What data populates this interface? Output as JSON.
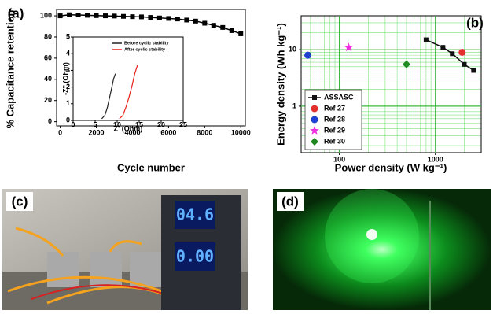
{
  "chart_data": [
    {
      "type": "line",
      "panel_label": "(a)",
      "xlabel": "Cycle number",
      "ylabel": "% Capacitance retention",
      "x": [
        0,
        500,
        1000,
        1500,
        2000,
        2500,
        3000,
        3500,
        4000,
        4500,
        5000,
        5500,
        6000,
        6500,
        7000,
        7500,
        8000,
        8500,
        9000,
        9500,
        10000
      ],
      "series": [
        {
          "color": "#000000",
          "marker": "square",
          "values": [
            100,
            101,
            100.8,
            100.5,
            100.2,
            100,
            99.8,
            99.5,
            99.2,
            99,
            98.5,
            98,
            97.5,
            97,
            96,
            95,
            93,
            91,
            89,
            86,
            83
          ]
        }
      ],
      "xlim": [
        -200,
        10250
      ],
      "ylim": [
        -4,
        106
      ],
      "xticks": [
        0,
        2000,
        4000,
        6000,
        8000,
        10000
      ],
      "yticks": [
        0,
        20,
        40,
        60,
        80,
        100
      ]
    },
    {
      "type": "line",
      "xlabel": "Z' (Ohm)",
      "ylabel": "-Z'' (Ohm)",
      "series": [
        {
          "name": "Before cyclic stability",
          "color": "#222222",
          "x": [
            6.5,
            7.2,
            7.8,
            8.3,
            8.8,
            9.2,
            9.6
          ],
          "values": [
            0.1,
            0.3,
            0.8,
            1.4,
            2.0,
            2.5,
            2.8
          ]
        },
        {
          "name": "After cyclic stability",
          "color": "#e8201c",
          "x": [
            10.5,
            11.3,
            12.0,
            12.7,
            13.4,
            14.0,
            14.6
          ],
          "values": [
            0.1,
            0.3,
            0.8,
            1.4,
            2.1,
            2.8,
            3.3
          ]
        }
      ],
      "xlim": [
        0,
        25
      ],
      "ylim": [
        0,
        5
      ],
      "xticks": [
        0,
        5,
        10,
        15,
        20,
        25
      ],
      "yticks": [
        0,
        1,
        2,
        3,
        4,
        5
      ]
    },
    {
      "type": "scatter",
      "panel_label": "(b)",
      "xlabel": "Power density (W kg⁻¹)",
      "ylabel": "Energy density (Wh kg⁻¹)",
      "log": true,
      "grid": true,
      "legend": "lower-left",
      "series": [
        {
          "name": "ASSASC",
          "color": "#111111",
          "marker": "square",
          "line": true,
          "x": [
            800,
            1200,
            1500,
            2000,
            2500
          ],
          "values": [
            15,
            11,
            8.5,
            5.5,
            4.3
          ]
        },
        {
          "name": "Ref 27",
          "color": "#e53030",
          "marker": "circle",
          "x": [
            1900
          ],
          "values": [
            9
          ]
        },
        {
          "name": "Ref 28",
          "color": "#2040d0",
          "marker": "circle",
          "x": [
            47
          ],
          "values": [
            8
          ]
        },
        {
          "name": "Ref 29",
          "color": "#f030e0",
          "marker": "star",
          "x": [
            125
          ],
          "values": [
            11
          ]
        },
        {
          "name": "Ref 30",
          "color": "#1f8a1f",
          "marker": "diamond",
          "x": [
            500
          ],
          "values": [
            5.5
          ]
        }
      ],
      "xlim": [
        40,
        3000
      ],
      "ylim": [
        0.15,
        40
      ],
      "xticks": [
        100,
        1000
      ],
      "yticks": [
        1,
        10
      ]
    }
  ],
  "photos": [
    {
      "label": "(c)",
      "display": [
        "04.6",
        "0.00"
      ]
    },
    {
      "label": "(d)"
    }
  ]
}
